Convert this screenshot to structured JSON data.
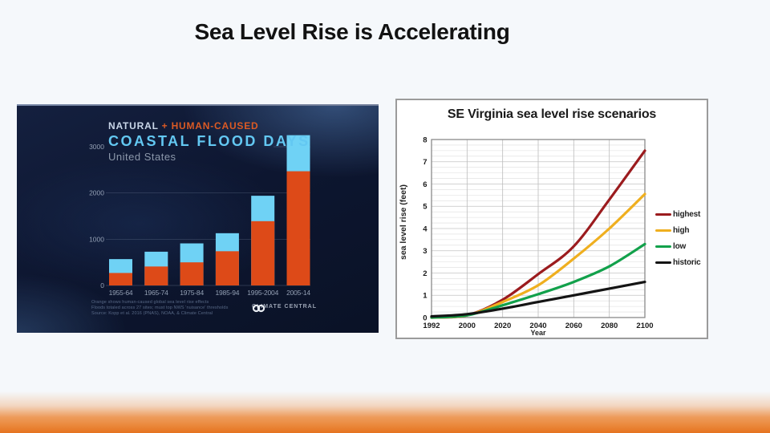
{
  "slide": {
    "title": "Sea Level Rise is Accelerating"
  },
  "left_chart": {
    "header": {
      "natural": "NATURAL",
      "plus": " + ",
      "human": "HUMAN-CAUSED",
      "main": "COASTAL FLOOD DAYS",
      "subtitle": "United States"
    },
    "footnotes": [
      "Orange shows human-caused global sea level rise effects",
      "Floods totaled across 27 sites; must top NWS 'nuisance' thresholds",
      "Source: Kopp et al. 2016 (PNAS), NOAA, & Climate Central"
    ],
    "logo": {
      "left": "CLIMATE",
      "right": "CENTRAL"
    },
    "colors": {
      "human_caused": "#DD4A18",
      "natural": "#6FD2F5",
      "axis_text": "#94A0B4",
      "gridline": "rgba(160,176,200,0.30)"
    }
  },
  "right_chart": {
    "title": "SE Virginia sea level rise scenarios",
    "ylabel": "sea level rise (feet)",
    "xlabel": "Year",
    "colors": {
      "border": "#8A8A8A",
      "major_grid": "#C4C4C4",
      "minor_grid": "#DEDEDE",
      "vertical_grid": "#BCBCBC",
      "tick_text": "#1A1A1A"
    }
  },
  "footer": {
    "accent_color": "#E5731F"
  },
  "chart_data": [
    {
      "type": "bar",
      "stacked": true,
      "title": "NATURAL + HUMAN-CAUSED COASTAL FLOOD DAYS (United States)",
      "categories": [
        "1955-64",
        "1965-74",
        "1975-84",
        "1985-94",
        "1995-2004",
        "2005-14"
      ],
      "series": [
        {
          "name": "human-caused",
          "color": "#DD4A18",
          "values": [
            270,
            410,
            500,
            740,
            1390,
            2470
          ]
        },
        {
          "name": "natural",
          "color": "#6FD2F5",
          "values": [
            300,
            320,
            410,
            390,
            550,
            780
          ]
        }
      ],
      "yticks": [
        0,
        1000,
        2000,
        3000
      ],
      "ylim": [
        0,
        3500
      ],
      "xlabel": "",
      "ylabel": "",
      "legend_position": "none",
      "grid": true
    },
    {
      "type": "line",
      "title": "SE Virginia sea level rise scenarios",
      "x": [
        "1992",
        "2000",
        "2020",
        "2040",
        "2060",
        "2080",
        "2100"
      ],
      "series": [
        {
          "name": "highest",
          "color": "#9B1B1E",
          "values": [
            0.0,
            0.1,
            0.8,
            1.95,
            3.2,
            5.3,
            7.5
          ]
        },
        {
          "name": "high",
          "color": "#EFAF1F",
          "values": [
            0.0,
            0.1,
            0.7,
            1.45,
            2.65,
            4.0,
            5.55
          ]
        },
        {
          "name": "low",
          "color": "#12A14B",
          "values": [
            0.0,
            0.1,
            0.55,
            1.05,
            1.6,
            2.3,
            3.3
          ]
        },
        {
          "name": "historic",
          "color": "#141414",
          "values": [
            0.05,
            0.15,
            0.4,
            0.7,
            1.0,
            1.3,
            1.6
          ]
        }
      ],
      "yticks": [
        0,
        1,
        2,
        3,
        4,
        5,
        6,
        7,
        8
      ],
      "ylim": [
        0,
        8
      ],
      "xlabel": "Year",
      "ylabel": "sea level rise (feet)",
      "legend_position": "right",
      "grid": true
    }
  ]
}
